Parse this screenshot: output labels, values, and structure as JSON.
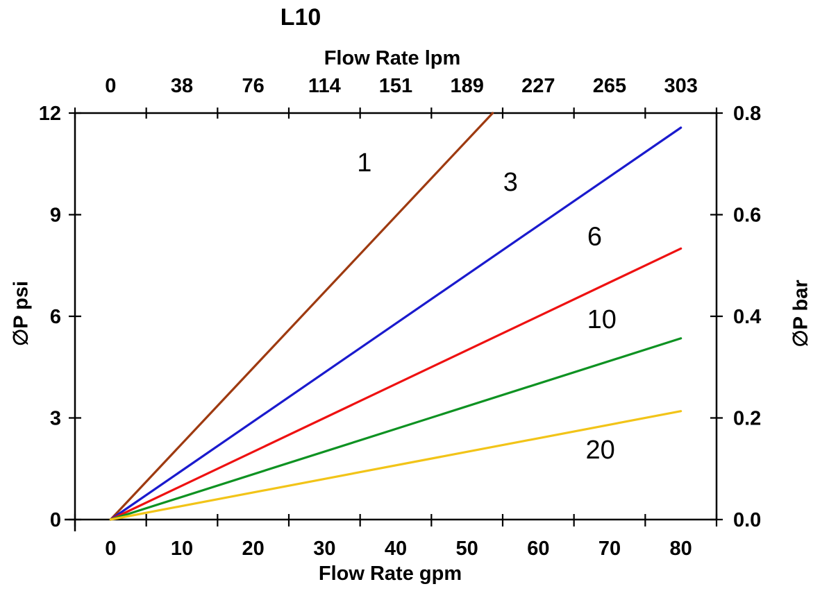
{
  "page": {
    "background": "#ffffff"
  },
  "chart_data": {
    "type": "line",
    "title": "L10",
    "grid": false,
    "legend_position": "none",
    "top_axis": {
      "label": "Flow Rate lpm",
      "ticks": [
        0,
        38,
        76,
        114,
        151,
        189,
        227,
        265,
        303
      ]
    },
    "bottom_axis": {
      "label": "Flow Rate gpm",
      "ticks": [
        0,
        10,
        20,
        30,
        40,
        50,
        60,
        70,
        80
      ],
      "range_drawn": [
        -5,
        85
      ]
    },
    "left_axis": {
      "label": "∅P psi",
      "ticks": [
        0,
        3,
        6,
        9,
        12
      ],
      "range": [
        0,
        12
      ]
    },
    "right_axis": {
      "label": "∅P bar",
      "ticks": [
        "0.0",
        "0.2",
        "0.4",
        "0.6",
        "0.8"
      ],
      "range": [
        0,
        0.8
      ]
    },
    "series": [
      {
        "label": "1",
        "color": "#9E3A10",
        "points": [
          [
            0,
            0
          ],
          [
            53.6,
            12
          ]
        ],
        "label_pos": [
          35.6,
          10.55
        ],
        "clipped_at_top": true
      },
      {
        "label": "3",
        "color": "#1A1ACD",
        "points": [
          [
            0,
            0
          ],
          [
            80,
            11.57
          ]
        ],
        "label_pos": [
          56.1,
          9.97
        ],
        "clipped_at_top": false
      },
      {
        "label": "6",
        "color": "#EE1111",
        "points": [
          [
            0,
            0
          ],
          [
            80,
            8.0
          ]
        ],
        "label_pos": [
          67.9,
          8.37
        ],
        "clipped_at_top": false
      },
      {
        "label": "10",
        "color": "#0E9222",
        "points": [
          [
            0,
            0
          ],
          [
            80,
            5.35
          ]
        ],
        "label_pos": [
          68.9,
          5.92
        ],
        "clipped_at_top": false
      },
      {
        "label": "20",
        "color": "#F2C418",
        "points": [
          [
            0,
            0
          ],
          [
            80,
            3.2
          ]
        ],
        "label_pos": [
          68.7,
          2.07
        ],
        "clipped_at_top": false
      }
    ]
  }
}
